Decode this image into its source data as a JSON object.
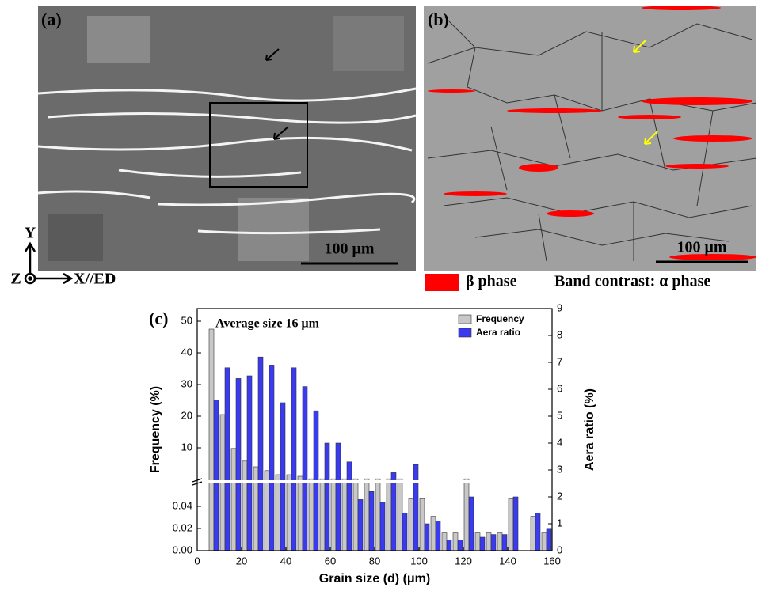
{
  "panels": [
    {
      "label": "(a)",
      "scale_bar": "100 μm"
    },
    {
      "label": "(b)",
      "scale_bar": "100 μm"
    }
  ],
  "axes_glyph": {
    "y": "Y",
    "z": "Z",
    "x": "X//ED"
  },
  "phase_legend": {
    "beta": "β phase",
    "alpha": "Band contrast: α phase"
  },
  "chart_data": {
    "type": "bar",
    "panel_label": "(c)",
    "annotation": "Average size 16 μm",
    "x_label": "Grain size (d) (μm)",
    "y_label": "Frequency (%)",
    "y2_label": "Aera ratio (%)",
    "x": [
      7.5,
      12.5,
      17.5,
      22.5,
      27.5,
      32.5,
      37.5,
      42.5,
      47.5,
      52.5,
      57.5,
      62.5,
      67.5,
      72.5,
      77.5,
      82.5,
      87.5,
      92.5,
      97.5,
      102.5,
      107.5,
      112.5,
      117.5,
      122.5,
      127.5,
      132.5,
      137.5,
      142.5,
      147.5,
      152.5,
      157.5
    ],
    "series": [
      {
        "name": "Frequency",
        "color": "#c8c8c8",
        "values": [
          47.5,
          20.5,
          9.8,
          5.8,
          4.0,
          2.8,
          1.5,
          1.5,
          1.0,
          0.2,
          0.2,
          0.2,
          0.2,
          0.2,
          0.2,
          0.2,
          0.2,
          0.2,
          0.047,
          0.047,
          0.031,
          0.016,
          0.016,
          0.2,
          0.016,
          0.016,
          0.016,
          0.047,
          null,
          0.031,
          0.016
        ]
      },
      {
        "name": "Aera ratio",
        "color": "#3a3af0",
        "axis": "y2",
        "values": [
          5.6,
          6.8,
          6.4,
          6.5,
          7.2,
          6.9,
          5.5,
          6.8,
          6.1,
          5.2,
          4.0,
          4.0,
          3.3,
          1.9,
          2.2,
          1.8,
          2.9,
          1.4,
          3.2,
          1.0,
          1.1,
          0.4,
          0.4,
          2.0,
          0.5,
          0.6,
          0.6,
          2.0,
          null,
          1.4,
          0.8
        ]
      }
    ],
    "xlim": [
      0,
      160
    ],
    "xticks": [
      0,
      20,
      40,
      60,
      80,
      100,
      120,
      140,
      160
    ],
    "ylim_lower": [
      0,
      0.06
    ],
    "yticks_lower": [
      {
        "value": 0,
        "label": "0.00"
      },
      {
        "value": 0.02,
        "label": "0.02"
      },
      {
        "value": 0.04,
        "label": "0.04"
      }
    ],
    "ylim_upper": [
      0,
      54
    ],
    "yticks_upper": [
      10,
      20,
      30,
      40,
      50
    ],
    "y2lim": [
      0,
      9
    ],
    "y2ticks": [
      0,
      1,
      2,
      3,
      4,
      5,
      6,
      7,
      8,
      9
    ],
    "legend": "upper right"
  }
}
